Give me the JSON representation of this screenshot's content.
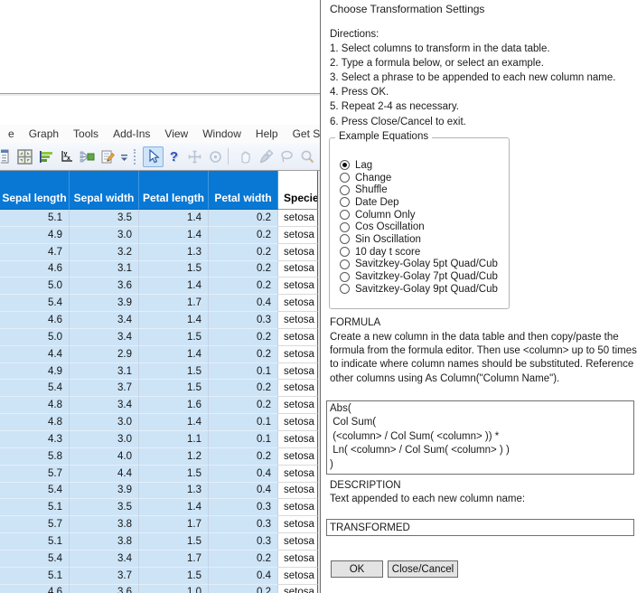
{
  "menu": {
    "items": [
      "e",
      "Graph",
      "Tools",
      "Add-Ins",
      "View",
      "Window",
      "Help",
      "Get Started"
    ]
  },
  "toolbar": {
    "icons": [
      "data-table-icon",
      "tile-windows-icon",
      "bar-chart-icon",
      "plot-axes-icon",
      "join-tables-icon",
      "edit-script-icon",
      "toolbar-overflow-icon",
      "arrow-cursor-icon",
      "help-icon",
      "crosshair-icon",
      "target-icon",
      "hand-icon",
      "brush-icon",
      "lasso-icon",
      "magnifier-icon",
      "plus-icon"
    ],
    "selected_tool": "arrow-cursor-icon"
  },
  "table": {
    "columns": [
      "Sepal length",
      "Sepal width",
      "Petal length",
      "Petal width",
      "Species"
    ],
    "rows": [
      [
        "5.1",
        "3.5",
        "1.4",
        "0.2",
        "setosa"
      ],
      [
        "4.9",
        "3.0",
        "1.4",
        "0.2",
        "setosa"
      ],
      [
        "4.7",
        "3.2",
        "1.3",
        "0.2",
        "setosa"
      ],
      [
        "4.6",
        "3.1",
        "1.5",
        "0.2",
        "setosa"
      ],
      [
        "5.0",
        "3.6",
        "1.4",
        "0.2",
        "setosa"
      ],
      [
        "5.4",
        "3.9",
        "1.7",
        "0.4",
        "setosa"
      ],
      [
        "4.6",
        "3.4",
        "1.4",
        "0.3",
        "setosa"
      ],
      [
        "5.0",
        "3.4",
        "1.5",
        "0.2",
        "setosa"
      ],
      [
        "4.4",
        "2.9",
        "1.4",
        "0.2",
        "setosa"
      ],
      [
        "4.9",
        "3.1",
        "1.5",
        "0.1",
        "setosa"
      ],
      [
        "5.4",
        "3.7",
        "1.5",
        "0.2",
        "setosa"
      ],
      [
        "4.8",
        "3.4",
        "1.6",
        "0.2",
        "setosa"
      ],
      [
        "4.8",
        "3.0",
        "1.4",
        "0.1",
        "setosa"
      ],
      [
        "4.3",
        "3.0",
        "1.1",
        "0.1",
        "setosa"
      ],
      [
        "5.8",
        "4.0",
        "1.2",
        "0.2",
        "setosa"
      ],
      [
        "5.7",
        "4.4",
        "1.5",
        "0.4",
        "setosa"
      ],
      [
        "5.4",
        "3.9",
        "1.3",
        "0.4",
        "setosa"
      ],
      [
        "5.1",
        "3.5",
        "1.4",
        "0.3",
        "setosa"
      ],
      [
        "5.7",
        "3.8",
        "1.7",
        "0.3",
        "setosa"
      ],
      [
        "5.1",
        "3.8",
        "1.5",
        "0.3",
        "setosa"
      ],
      [
        "5.4",
        "3.4",
        "1.7",
        "0.2",
        "setosa"
      ],
      [
        "5.1",
        "3.7",
        "1.5",
        "0.4",
        "setosa"
      ],
      [
        "4.6",
        "3.6",
        "1.0",
        "0.2",
        "setosa"
      ]
    ],
    "selection_color": "#cde4f7",
    "header_color": "#0878d4"
  },
  "dialog": {
    "title": "Choose Transformation Settings",
    "directions_label": "Directions:",
    "directions": [
      "1. Select columns to transform in the data table.",
      "2. Type a formula below, or select an example.",
      "3. Select a phrase to be appended to each new column name.",
      "4. Press OK.",
      "5. Repeat 2-4 as necessary.",
      "6. Press Close/Cancel to exit."
    ],
    "example_equations": {
      "label": "Example Equations",
      "selected": "Lag",
      "options": [
        "Lag",
        "Change",
        "Shuffle",
        "Date Dep",
        "Column Only",
        "Cos Oscillation",
        "Sin Oscillation",
        "10 day t score",
        "Savitzkey-Golay 5pt Quad/Cub",
        "Savitzkey-Golay 7pt Quad/Cub",
        "Savitzkey-Golay 9pt Quad/Cub"
      ]
    },
    "formula_label": "FORMULA",
    "formula_help": "Create a new column in the data table and then copy/paste the formula from the formula editor.  Then use <column> up to 50 times to indicate where column names should be substituted. Reference other columns using As Column(\"Column Name\").",
    "formula_text": "Abs(\n Col Sum(\n (<column> / Col Sum( <column> )) *\n Ln( <column> / Col Sum( <column> ) )\n)",
    "description_label": "DESCRIPTION",
    "description_help": "Text appended to each new column name:",
    "append_value": "TRANSFORMED",
    "ok_label": "OK",
    "cancel_label": "Close/Cancel"
  }
}
